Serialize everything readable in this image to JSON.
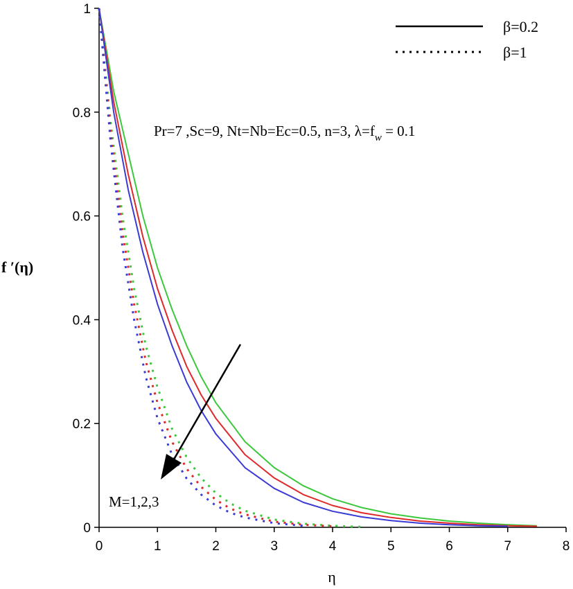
{
  "chart_data": {
    "type": "line",
    "xlabel": "η",
    "ylabel": "f ′(η)",
    "xlim": [
      0,
      8
    ],
    "ylim": [
      0,
      1
    ],
    "x_ticks": [
      "0",
      "1",
      "2",
      "3",
      "4",
      "5",
      "6",
      "7",
      "8"
    ],
    "y_ticks": [
      "0",
      "0.2",
      "0.4",
      "0.6",
      "0.8",
      "1"
    ],
    "legend": {
      "placement": "top-right",
      "entries": [
        {
          "label": "β=0.2",
          "style": "solid"
        },
        {
          "label": "β=1",
          "style": "dotted"
        }
      ]
    },
    "parameter_text": "Pr=7 ,Sc=9, Nt=Nb=Ec=0.5, n=3, λ=f",
    "parameter_sub": "w",
    "parameter_tail": " = 0.1",
    "arrow_label": "M=1,2,3",
    "grid": false,
    "series": [
      {
        "color": "#3cc83c",
        "style": "solid",
        "x": [
          0,
          0.25,
          0.5,
          0.75,
          1,
          1.25,
          1.5,
          1.75,
          2,
          2.5,
          3,
          3.5,
          4,
          4.5,
          5,
          5.5,
          6,
          6.5,
          7,
          7.5
        ],
        "y": [
          1,
          0.84,
          0.72,
          0.6,
          0.5,
          0.42,
          0.35,
          0.29,
          0.24,
          0.165,
          0.115,
          0.08,
          0.055,
          0.038,
          0.026,
          0.018,
          0.012,
          0.008,
          0.005,
          0.003
        ]
      },
      {
        "color": "#e02828",
        "style": "solid",
        "x": [
          0,
          0.25,
          0.5,
          0.75,
          1,
          1.25,
          1.5,
          1.75,
          2,
          2.5,
          3,
          3.5,
          4,
          4.5,
          5,
          5.5,
          6,
          6.5,
          7,
          7.5
        ],
        "y": [
          1,
          0.82,
          0.68,
          0.56,
          0.46,
          0.38,
          0.31,
          0.255,
          0.21,
          0.14,
          0.095,
          0.063,
          0.042,
          0.028,
          0.019,
          0.012,
          0.008,
          0.005,
          0.003,
          0.002
        ]
      },
      {
        "color": "#3a3ad6",
        "style": "solid",
        "x": [
          0,
          0.25,
          0.5,
          0.75,
          1,
          1.25,
          1.5,
          1.75,
          2,
          2.5,
          3,
          3.5,
          4,
          4.5,
          5,
          5.5,
          6,
          6.5,
          7
        ],
        "y": [
          1,
          0.8,
          0.65,
          0.53,
          0.43,
          0.35,
          0.28,
          0.225,
          0.18,
          0.115,
          0.075,
          0.048,
          0.031,
          0.02,
          0.013,
          0.008,
          0.005,
          0.003,
          0.002
        ]
      },
      {
        "color": "#3cc83c",
        "style": "dotted",
        "x": [
          0,
          0.2,
          0.4,
          0.6,
          0.8,
          1,
          1.25,
          1.5,
          1.75,
          2,
          2.25,
          2.5,
          3,
          3.5,
          4,
          4.5
        ],
        "y": [
          1,
          0.78,
          0.6,
          0.46,
          0.35,
          0.27,
          0.19,
          0.135,
          0.095,
          0.066,
          0.046,
          0.032,
          0.015,
          0.007,
          0.003,
          0.001
        ]
      },
      {
        "color": "#e02828",
        "style": "dotted",
        "x": [
          0,
          0.2,
          0.4,
          0.6,
          0.8,
          1,
          1.25,
          1.5,
          1.75,
          2,
          2.25,
          2.5,
          3,
          3.5,
          4
        ],
        "y": [
          1,
          0.76,
          0.57,
          0.43,
          0.32,
          0.24,
          0.165,
          0.113,
          0.078,
          0.053,
          0.036,
          0.025,
          0.011,
          0.005,
          0.002
        ]
      },
      {
        "color": "#3a3ad6",
        "style": "dotted",
        "x": [
          0,
          0.2,
          0.4,
          0.6,
          0.8,
          1,
          1.25,
          1.5,
          1.75,
          2,
          2.25,
          2.5,
          3,
          3.5
        ],
        "y": [
          1,
          0.74,
          0.54,
          0.4,
          0.29,
          0.21,
          0.14,
          0.094,
          0.063,
          0.042,
          0.028,
          0.019,
          0.008,
          0.003
        ]
      }
    ]
  }
}
